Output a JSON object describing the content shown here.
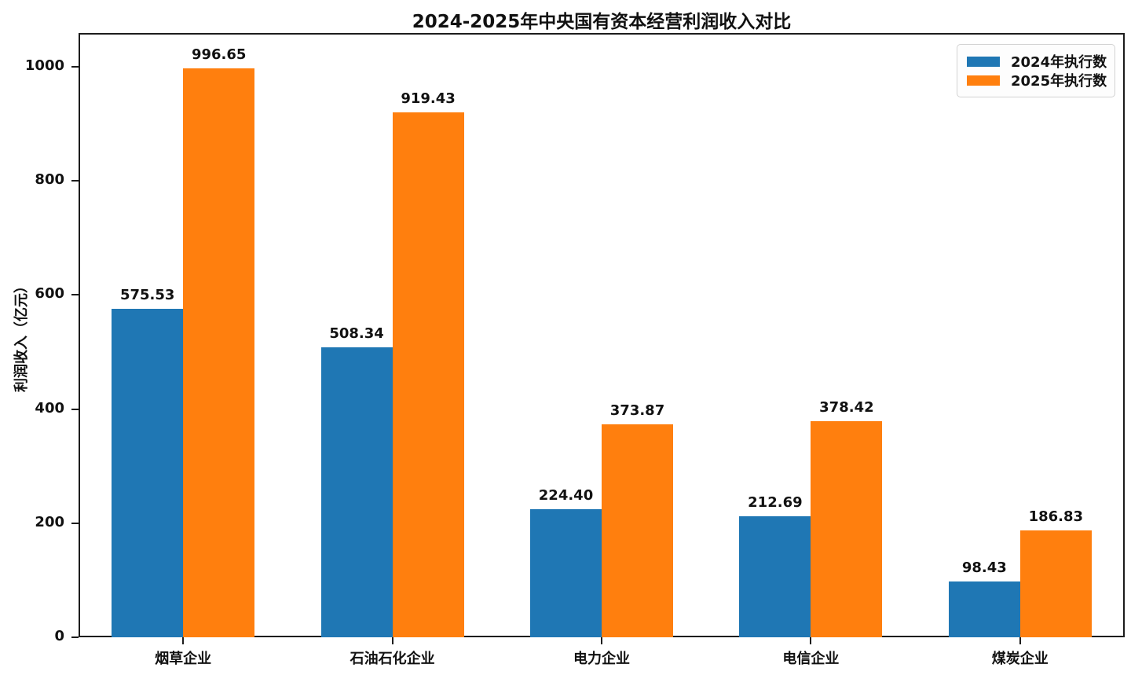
{
  "chart_data": {
    "type": "bar",
    "title": "2024-2025年中央国有资本经营利润收入对比",
    "xlabel": "",
    "ylabel": "利润收入（亿元）",
    "categories": [
      "烟草企业",
      "石油石化企业",
      "电力企业",
      "电信企业",
      "煤炭企业"
    ],
    "series": [
      {
        "name": "2024年执行数",
        "color": "#1f77b4",
        "values": [
          575.53,
          508.34,
          224.4,
          212.69,
          98.43
        ]
      },
      {
        "name": "2025年执行数",
        "color": "#ff7f0e",
        "values": [
          996.65,
          919.43,
          373.87,
          378.42,
          186.83
        ]
      }
    ],
    "ylim": [
      0,
      1059
    ],
    "yticks": [
      0,
      200,
      400,
      600,
      800,
      1000
    ],
    "grid": false,
    "legend_position": "upper right",
    "value_label_decimals": 2
  }
}
